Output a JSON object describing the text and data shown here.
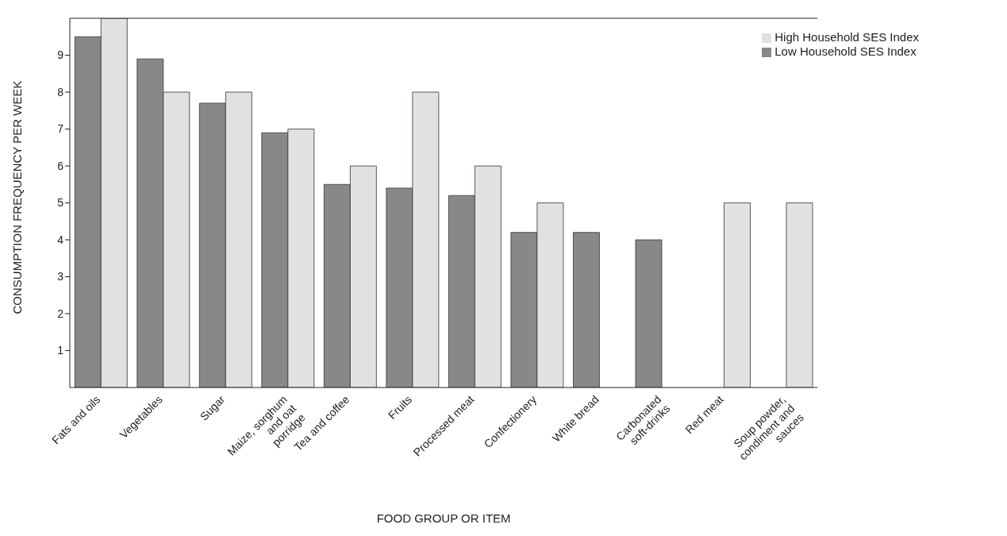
{
  "chart_data": {
    "type": "bar",
    "xlabel": "FOOD GROUP OR ITEM",
    "ylabel": "CONSUMPTION FREQUENCY PER WEEK",
    "categories": [
      "Fats and oils",
      "Vegetables",
      "Sugar",
      "Maize, sorghum and oat porridge",
      "Tea and coffee",
      "Fruits",
      "Processed meat",
      "Confectionery",
      "White bread",
      "Carbonated soft-drinks",
      "Red meat",
      "Soup powder, condiment and sauces"
    ],
    "series": [
      {
        "name": "Low Household SES Index",
        "color": "#87888a",
        "values": [
          9.5,
          8.9,
          7.7,
          6.9,
          5.5,
          5.4,
          5.2,
          4.2,
          4.2,
          4.0,
          null,
          null
        ]
      },
      {
        "name": "High Household SES Index",
        "color": "#e0e1e3",
        "values": [
          10,
          8,
          8,
          7,
          6,
          8,
          6,
          5,
          null,
          null,
          5,
          5
        ]
      }
    ],
    "ylim": [
      0,
      10
    ],
    "yticks": [
      1,
      2,
      3,
      4,
      5,
      6,
      7,
      8,
      9
    ],
    "grid": false,
    "legend": "top right"
  }
}
